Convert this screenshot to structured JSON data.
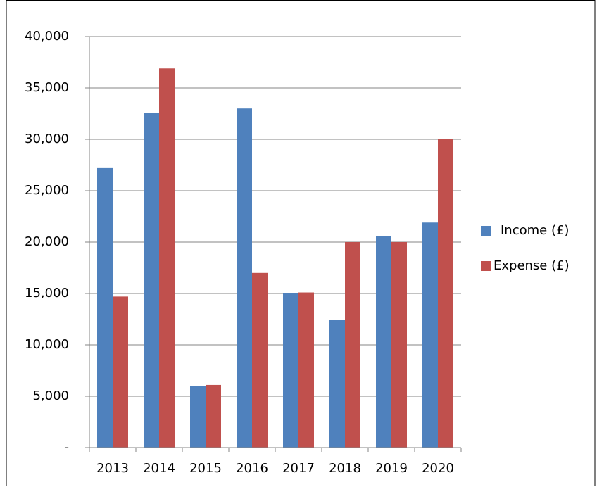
{
  "chart_data": {
    "type": "bar",
    "categories": [
      "2013",
      "2014",
      "2015",
      "2016",
      "2017",
      "2018",
      "2019",
      "2020"
    ],
    "series": [
      {
        "name": "Income (£)",
        "color": "#4f81bd",
        "values": [
          27200,
          32600,
          6000,
          33000,
          15000,
          12400,
          20600,
          21900
        ]
      },
      {
        "name": "Expense (£)",
        "color": "#c0504d",
        "values": [
          14700,
          36900,
          6100,
          17000,
          15100,
          20000,
          20000,
          30000
        ]
      }
    ],
    "ylim": [
      0,
      40000
    ],
    "yticks": [
      {
        "value": 0,
        "label": "-"
      },
      {
        "value": 5000,
        "label": "5,000"
      },
      {
        "value": 10000,
        "label": "10,000"
      },
      {
        "value": 15000,
        "label": "15,000"
      },
      {
        "value": 20000,
        "label": "20,000"
      },
      {
        "value": 25000,
        "label": "25,000"
      },
      {
        "value": 30000,
        "label": "30,000"
      },
      {
        "value": 35000,
        "label": "35,000"
      },
      {
        "value": 40000,
        "label": "40,000"
      }
    ],
    "grid": true,
    "legend": "right"
  }
}
